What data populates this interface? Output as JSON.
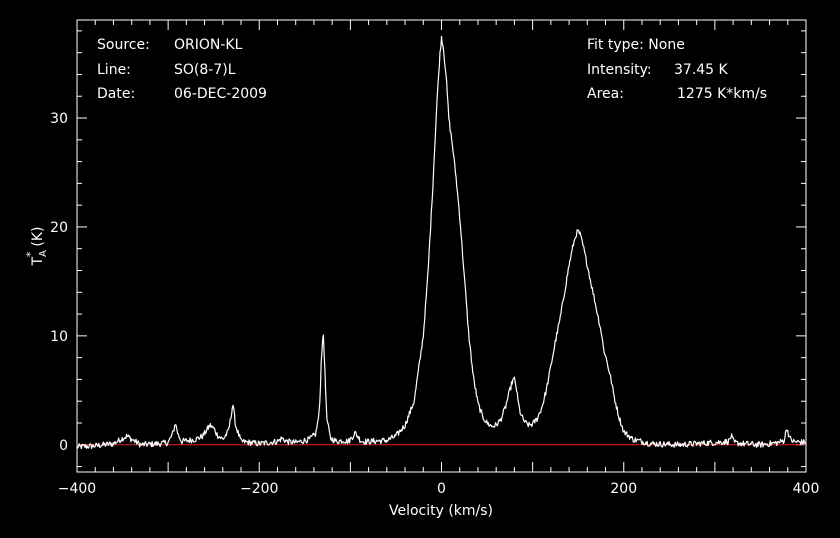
{
  "header_left": {
    "source_label": "Source:",
    "source_value": "ORION-KL",
    "line_label": "Line:",
    "line_value": "SO(8-7)L",
    "date_label": "Date:",
    "date_value": "06-DEC-2009"
  },
  "header_right": {
    "fit_label": "Fit type: None",
    "intensity_label": "Intensity:",
    "intensity_value": "37.45 K",
    "area_label": "Area:",
    "area_value": "1275 K*km/s"
  },
  "colors": {
    "background": "#000000",
    "frame": "#ffffff",
    "spectrum": "#ffffff",
    "baseline": "#e02020"
  },
  "chart_data": {
    "type": "line",
    "xlabel": "Velocity (km/s)",
    "ylabel_main": "T",
    "ylabel_sub": "A",
    "ylabel_sup": "*",
    "ylabel_unit": "(K)",
    "xlim": [
      -400,
      400
    ],
    "ylim": [
      -2.5,
      39
    ],
    "x_ticks": [
      -400,
      -200,
      0,
      200,
      400
    ],
    "x_tick_labels": [
      "−400",
      "−200",
      "0",
      "200",
      "400"
    ],
    "y_ticks": [
      0,
      10,
      20,
      30
    ],
    "y_tick_labels": [
      "0",
      "10",
      "20",
      "30"
    ],
    "grid": false,
    "baseline_value": 0,
    "series": [
      {
        "x": [
          -400,
          -380,
          -360,
          -350,
          -345,
          -340,
          -330,
          -310,
          -300,
          -295,
          -292,
          -289,
          -285,
          -270,
          -262,
          -258,
          -254,
          -250,
          -246,
          -240,
          -234,
          -231,
          -229,
          -226,
          -220,
          -200,
          -180,
          -175,
          -170,
          -160,
          -145,
          -138,
          -134,
          -132,
          -130,
          -128,
          -126,
          -122,
          -115,
          -108,
          -102,
          -98,
          -95,
          -92,
          -89,
          -86,
          -80,
          -60,
          -50,
          -40,
          -30,
          -20,
          -15,
          -10,
          -5,
          -2,
          0,
          2,
          5,
          8,
          12,
          16,
          20,
          25,
          30,
          35,
          40,
          45,
          50,
          55,
          60,
          65,
          70,
          75,
          78,
          80,
          82,
          84,
          86,
          88,
          92,
          96,
          100,
          105,
          110,
          115,
          120,
          125,
          130,
          135,
          140,
          145,
          148,
          150,
          152,
          155,
          160,
          165,
          170,
          175,
          178,
          182,
          186,
          190,
          195,
          200,
          210,
          230,
          260,
          300,
          315,
          318,
          321,
          330,
          350,
          370,
          376,
          379,
          382,
          386,
          400
        ],
        "y": [
          -0.2,
          -0.1,
          0.1,
          0.6,
          0.8,
          0.5,
          0.0,
          0.1,
          0.2,
          1.0,
          2.0,
          0.9,
          0.3,
          0.5,
          0.8,
          1.3,
          1.8,
          1.5,
          0.9,
          0.5,
          1.2,
          2.6,
          3.8,
          1.8,
          0.3,
          0.1,
          0.3,
          0.6,
          0.3,
          0.2,
          0.5,
          1.0,
          3.0,
          7.5,
          10.5,
          7.0,
          2.5,
          0.6,
          0.3,
          0.4,
          0.3,
          0.7,
          1.1,
          0.8,
          0.4,
          0.3,
          0.3,
          0.4,
          0.8,
          1.8,
          4.0,
          10.0,
          15.5,
          23.0,
          31.5,
          35.5,
          37.45,
          36.5,
          34.0,
          30.0,
          27.5,
          24.5,
          21.0,
          15.5,
          10.0,
          6.2,
          3.8,
          2.6,
          2.0,
          1.7,
          1.8,
          2.3,
          3.4,
          5.0,
          5.9,
          6.0,
          5.3,
          4.0,
          3.1,
          2.6,
          2.0,
          1.8,
          1.9,
          2.4,
          3.4,
          5.0,
          7.2,
          9.5,
          11.5,
          14.0,
          16.5,
          18.5,
          19.4,
          19.6,
          19.3,
          18.4,
          16.5,
          14.5,
          12.5,
          10.5,
          8.8,
          7.5,
          6.0,
          4.2,
          2.5,
          1.2,
          0.5,
          0.1,
          0.0,
          0.2,
          0.3,
          0.8,
          0.2,
          0.1,
          0.0,
          0.2,
          0.4,
          1.6,
          0.6,
          0.3,
          0.2
        ]
      }
    ]
  }
}
